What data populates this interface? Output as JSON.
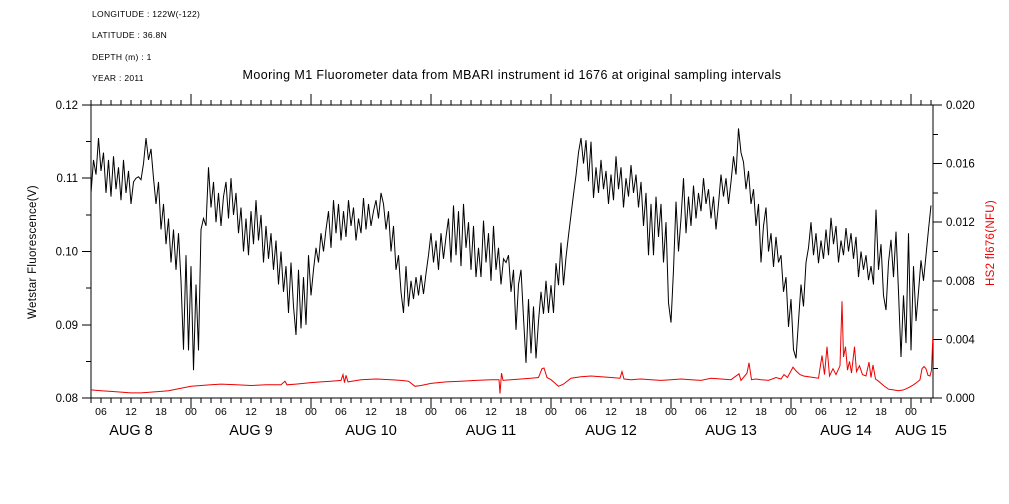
{
  "meta": {
    "lines": [
      "LONGITUDE : 122W(-122)",
      "LATITUDE : 36.8N",
      "DEPTH (m) : 1",
      "YEAR : 2011"
    ]
  },
  "title": "Mooring M1 Fluorometer data from MBARI instrument id 1676 at original sampling intervals",
  "colors": {
    "series_black": "#000000",
    "series_red": "#ee0000",
    "background": "#ffffff"
  },
  "chart_data": {
    "type": "line",
    "title": "Mooring M1 Fluorometer data from MBARI instrument id 1676 at original sampling intervals",
    "grid": false,
    "legend": "none",
    "x_axis": {
      "unit": "hours since Aug 8 2011 00:00",
      "start": 4,
      "end": 172.4,
      "minor_tick_hours": 2,
      "hour_label_step": 6,
      "hour_label_cycle": [
        "06",
        "12",
        "18",
        "00"
      ],
      "day_labels": [
        {
          "label": "AUG 8",
          "center_hour": 12
        },
        {
          "label": "AUG 9",
          "center_hour": 36
        },
        {
          "label": "AUG 10",
          "center_hour": 60
        },
        {
          "label": "AUG 11",
          "center_hour": 84
        },
        {
          "label": "AUG 12",
          "center_hour": 108
        },
        {
          "label": "AUG 13",
          "center_hour": 132
        },
        {
          "label": "AUG 14",
          "center_hour": 155
        },
        {
          "label": "AUG 15",
          "center_hour": 170
        }
      ]
    },
    "left_axis": {
      "label": "Wetstar Fluorescence(V)",
      "min": 0.08,
      "max": 0.12,
      "major": 0.01,
      "minor": 0.005,
      "tick_labels": [
        "0.08",
        "0.09",
        "0.10",
        "0.11",
        "0.12"
      ],
      "color": "#000000"
    },
    "right_axis": {
      "label": "HS2 fl676(NFU)",
      "min": 0.0,
      "max": 0.02,
      "major": 0.004,
      "minor": 0.002,
      "tick_labels": [
        "0.000",
        "0.004",
        "0.008",
        "0.012",
        "0.016",
        "0.020"
      ],
      "color": "#ee0000"
    },
    "series": [
      {
        "name": "Wetstar Fluorescence (V)",
        "axis": "left",
        "color": "#000000",
        "t_start": 4,
        "t_step": 0.5,
        "values": [
          0.108,
          0.1125,
          0.1105,
          0.1155,
          0.111,
          0.1135,
          0.108,
          0.1125,
          0.1075,
          0.113,
          0.1085,
          0.1115,
          0.107,
          0.1125,
          0.108,
          0.111,
          0.1065,
          0.1095,
          0.11,
          0.1102,
          0.1098,
          0.112,
          0.1155,
          0.1125,
          0.114,
          0.11,
          0.1065,
          0.1095,
          0.103,
          0.1065,
          0.101,
          0.1045,
          0.0985,
          0.103,
          0.0975,
          0.1025,
          0.096,
          0.0866,
          0.0995,
          0.0865,
          0.098,
          0.0838,
          0.0955,
          0.0865,
          0.103,
          0.1045,
          0.1035,
          0.1115,
          0.106,
          0.1095,
          0.104,
          0.108,
          0.1035,
          0.1075,
          0.1095,
          0.1045,
          0.11,
          0.105,
          0.108,
          0.1025,
          0.106,
          0.1,
          0.1045,
          0.0995,
          0.1055,
          0.101,
          0.107,
          0.1015,
          0.105,
          0.0985,
          0.1035,
          0.099,
          0.1025,
          0.0975,
          0.1015,
          0.0955,
          0.1,
          0.0945,
          0.098,
          0.0916,
          0.0985,
          0.0925,
          0.0886,
          0.0975,
          0.0895,
          0.0965,
          0.09,
          0.0995,
          0.094,
          0.0975,
          0.1005,
          0.0985,
          0.1025,
          0.1,
          0.103,
          0.1055,
          0.1005,
          0.107,
          0.1025,
          0.1065,
          0.1015,
          0.1055,
          0.102,
          0.107,
          0.1035,
          0.106,
          0.1015,
          0.1045,
          0.1025,
          0.1073,
          0.103,
          0.1065,
          0.1035,
          0.1055,
          0.107,
          0.1045,
          0.108,
          0.1065,
          0.103,
          0.1055,
          0.1,
          0.1035,
          0.0975,
          0.0995,
          0.0945,
          0.0916,
          0.098,
          0.0925,
          0.096,
          0.0935,
          0.0965,
          0.094,
          0.0968,
          0.0942,
          0.097,
          0.0995,
          0.1025,
          0.0985,
          0.1015,
          0.0975,
          0.1025,
          0.099,
          0.102,
          0.1045,
          0.0985,
          0.1063,
          0.0995,
          0.1055,
          0.098,
          0.1065,
          0.1005,
          0.104,
          0.0975,
          0.1035,
          0.0965,
          0.1005,
          0.0965,
          0.1042,
          0.0985,
          0.1025,
          0.096,
          0.1035,
          0.0975,
          0.1005,
          0.0955,
          0.099,
          0.0985,
          0.0995,
          0.0945,
          0.0975,
          0.0893,
          0.0955,
          0.0975,
          0.091,
          0.0848,
          0.0935,
          0.0861,
          0.0925,
          0.0854,
          0.0905,
          0.0945,
          0.0915,
          0.096,
          0.0916,
          0.0954,
          0.0916,
          0.0984,
          0.0954,
          0.1012,
          0.0954,
          0.0992,
          0.1022,
          0.105,
          0.1078,
          0.1104,
          0.1135,
          0.1155,
          0.112,
          0.1152,
          0.1096,
          0.115,
          0.1073,
          0.1115,
          0.108,
          0.1125,
          0.1085,
          0.111,
          0.1065,
          0.1105,
          0.107,
          0.113,
          0.1085,
          0.1115,
          0.106,
          0.11,
          0.1075,
          0.1118,
          0.108,
          0.1105,
          0.106,
          0.1095,
          0.1035,
          0.108,
          0.0995,
          0.1065,
          0.0995,
          0.1075,
          0.102,
          0.1065,
          0.0985,
          0.104,
          0.093,
          0.0903,
          0.0975,
          0.1068,
          0.1,
          0.1045,
          0.11,
          0.1025,
          0.1075,
          0.1035,
          0.109,
          0.1045,
          0.108,
          0.1055,
          0.11,
          0.1065,
          0.1085,
          0.1045,
          0.1075,
          0.103,
          0.1065,
          0.1105,
          0.1075,
          0.11,
          0.1065,
          0.1095,
          0.113,
          0.1105,
          0.1168,
          0.1135,
          0.1122,
          0.1085,
          0.111,
          0.1065,
          0.1085,
          0.1035,
          0.1065,
          0.0985,
          0.1035,
          0.106,
          0.1,
          0.1025,
          0.0979,
          0.102,
          0.0985,
          0.0995,
          0.0945,
          0.0965,
          0.0897,
          0.0935,
          0.0866,
          0.0854,
          0.0905,
          0.0955,
          0.0925,
          0.0985,
          0.1005,
          0.104,
          0.0995,
          0.1025,
          0.0984,
          0.1015,
          0.099,
          0.103,
          0.0995,
          0.1046,
          0.101,
          0.1035,
          0.0985,
          0.1015,
          0.0995,
          0.1032,
          0.1,
          0.1025,
          0.099,
          0.102,
          0.0965,
          0.1,
          0.0975,
          0.0995,
          0.0961,
          0.098,
          0.0955,
          0.1057,
          0.0975,
          0.101,
          0.094,
          0.092,
          0.0985,
          0.1016,
          0.0965,
          0.1027,
          0.0945,
          0.0856,
          0.094,
          0.0875,
          0.1025,
          0.0865,
          0.098,
          0.0905,
          0.0945,
          0.0988,
          0.096,
          0.0995,
          0.103,
          0.1063
        ]
      },
      {
        "name": "HS2 fl676 (NFU)",
        "axis": "right",
        "color": "#ee0000",
        "points": [
          [
            4,
            0.00055
          ],
          [
            6,
            0.0005
          ],
          [
            8,
            0.00045
          ],
          [
            10,
            0.0004
          ],
          [
            12,
            0.00035
          ],
          [
            14,
            0.00035
          ],
          [
            16,
            0.0004
          ],
          [
            18,
            0.00045
          ],
          [
            19.5,
            0.0005
          ],
          [
            21,
            0.0006
          ],
          [
            22.5,
            0.0007
          ],
          [
            24,
            0.0008
          ],
          [
            26,
            0.00085
          ],
          [
            28,
            0.0009
          ],
          [
            30,
            0.00095
          ],
          [
            33,
            0.0009
          ],
          [
            36,
            0.00085
          ],
          [
            39,
            0.0009
          ],
          [
            42,
            0.0009
          ],
          [
            42.8,
            0.00115
          ],
          [
            43.2,
            0.0009
          ],
          [
            45,
            0.00095
          ],
          [
            48,
            0.00105
          ],
          [
            50,
            0.0011
          ],
          [
            52,
            0.00115
          ],
          [
            54,
            0.0012
          ],
          [
            54.4,
            0.0016
          ],
          [
            54.7,
            0.00105
          ],
          [
            55,
            0.00155
          ],
          [
            55.4,
            0.0011
          ],
          [
            58,
            0.00125
          ],
          [
            61,
            0.0013
          ],
          [
            64,
            0.00125
          ],
          [
            66,
            0.0012
          ],
          [
            67.5,
            0.00115
          ],
          [
            68.8,
            0.0008
          ],
          [
            70,
            0.00085
          ],
          [
            72,
            0.001
          ],
          [
            75,
            0.0011
          ],
          [
            78,
            0.00115
          ],
          [
            81,
            0.0012
          ],
          [
            84,
            0.00125
          ],
          [
            85.6,
            0.00125
          ],
          [
            85.8,
            0.0003
          ],
          [
            86.1,
            0.0017
          ],
          [
            86.4,
            0.0012
          ],
          [
            88,
            0.00125
          ],
          [
            90,
            0.0013
          ],
          [
            92,
            0.00135
          ],
          [
            93.5,
            0.0014
          ],
          [
            94.2,
            0.002
          ],
          [
            94.6,
            0.00205
          ],
          [
            95.2,
            0.0014
          ],
          [
            96,
            0.00125
          ],
          [
            97.5,
            0.0008
          ],
          [
            98.5,
            0.00095
          ],
          [
            100,
            0.00135
          ],
          [
            102,
            0.00145
          ],
          [
            104,
            0.0015
          ],
          [
            106,
            0.00145
          ],
          [
            108,
            0.0014
          ],
          [
            109.8,
            0.00135
          ],
          [
            110.2,
            0.0018
          ],
          [
            110.6,
            0.0013
          ],
          [
            112,
            0.00125
          ],
          [
            114,
            0.0013
          ],
          [
            116,
            0.00125
          ],
          [
            118,
            0.0012
          ],
          [
            120,
            0.00125
          ],
          [
            122,
            0.0013
          ],
          [
            124,
            0.00125
          ],
          [
            126,
            0.0012
          ],
          [
            128,
            0.00135
          ],
          [
            130,
            0.0013
          ],
          [
            132,
            0.00125
          ],
          [
            133.6,
            0.00165
          ],
          [
            134,
            0.0012
          ],
          [
            135.2,
            0.0017
          ],
          [
            135.6,
            0.0024
          ],
          [
            136.1,
            0.00125
          ],
          [
            137,
            0.0013
          ],
          [
            138,
            0.00125
          ],
          [
            139.5,
            0.0012
          ],
          [
            141,
            0.0014
          ],
          [
            142,
            0.0013
          ],
          [
            142.6,
            0.0016
          ],
          [
            143.3,
            0.0014
          ],
          [
            144.4,
            0.0021
          ],
          [
            145,
            0.00185
          ],
          [
            145.8,
            0.0016
          ],
          [
            146.5,
            0.0015
          ],
          [
            147.5,
            0.00145
          ],
          [
            148.5,
            0.0014
          ],
          [
            149.5,
            0.00135
          ],
          [
            150.2,
            0.0029
          ],
          [
            150.7,
            0.0016
          ],
          [
            151.2,
            0.0035
          ],
          [
            151.7,
            0.0015
          ],
          [
            152.4,
            0.002
          ],
          [
            153,
            0.0016
          ],
          [
            153.8,
            0.0022
          ],
          [
            154.2,
            0.0066
          ],
          [
            154.5,
            0.0028
          ],
          [
            154.9,
            0.0035
          ],
          [
            155.3,
            0.0019
          ],
          [
            155.7,
            0.0025
          ],
          [
            156.1,
            0.0017
          ],
          [
            156.7,
            0.0035
          ],
          [
            157.1,
            0.0018
          ],
          [
            157.7,
            0.0022
          ],
          [
            158.3,
            0.0016
          ],
          [
            159,
            0.0015
          ],
          [
            159.6,
            0.00245
          ],
          [
            160,
            0.0014
          ],
          [
            160.4,
            0.00225
          ],
          [
            160.9,
            0.0013
          ],
          [
            161.5,
            0.00115
          ],
          [
            162.5,
            0.00085
          ],
          [
            163.5,
            0.0006
          ],
          [
            164.5,
            0.00055
          ],
          [
            165.5,
            0.0005
          ],
          [
            166.5,
            0.00055
          ],
          [
            167.5,
            0.0007
          ],
          [
            168.5,
            0.0009
          ],
          [
            169.3,
            0.0011
          ],
          [
            169.8,
            0.00125
          ],
          [
            170.2,
            0.002
          ],
          [
            170.6,
            0.00215
          ],
          [
            171,
            0.002
          ],
          [
            171.4,
            0.00155
          ],
          [
            171.8,
            0.0015
          ],
          [
            172.1,
            0.0019
          ],
          [
            172.35,
            0.0041
          ]
        ]
      }
    ]
  }
}
